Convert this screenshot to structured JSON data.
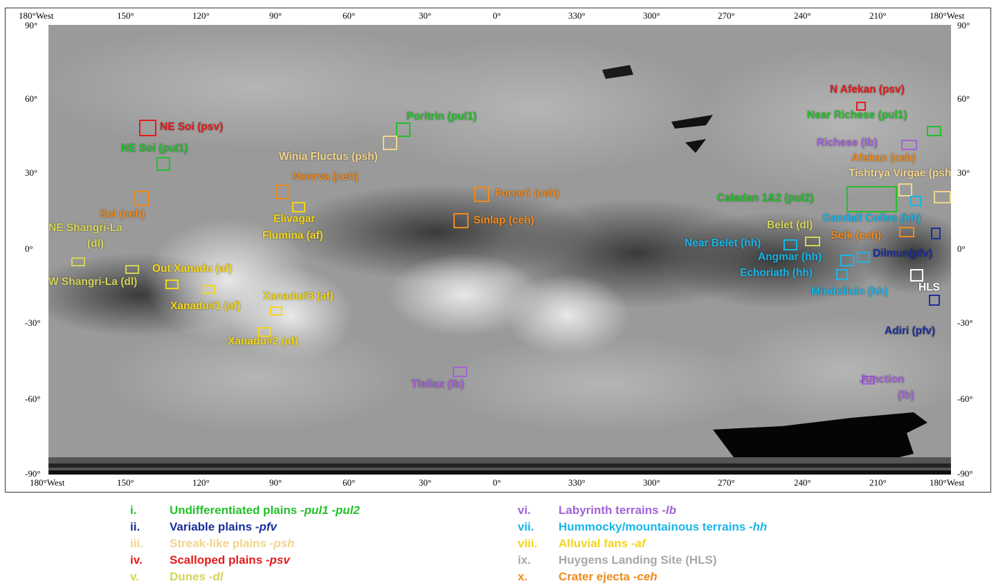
{
  "colors": {
    "green": "#22c02a",
    "navy": "#1a2f9a",
    "tan": "#f2d58c",
    "red": "#e41b1b",
    "khaki": "#d4d45a",
    "purple": "#a262d6",
    "cyan": "#18b6e8",
    "yellow": "#f4d619",
    "gray": "#a8a8a8",
    "orange": "#f08a1c",
    "white": "#ffffff"
  },
  "axes": {
    "top_left_corner": "180°West",
    "top_right_corner": "180°West",
    "bottom_left_corner": "180°West",
    "bottom_right_corner": "180°West",
    "lon_ticks": [
      "150°",
      "120°",
      "90°",
      "60°",
      "30°",
      "0°",
      "330°",
      "300°",
      "270°",
      "240°",
      "210°"
    ],
    "lat_ticks": [
      "90°",
      "60°",
      "30°",
      "0°",
      "-30°",
      "-60°",
      "-90°"
    ]
  },
  "map_labels": [
    {
      "text": "N Afekan (psv)",
      "color": "red"
    },
    {
      "text": "NE Soi (psv)",
      "color": "red"
    },
    {
      "text": "Poritrin (pul1)",
      "color": "green"
    },
    {
      "text": "Near Richese (pul1)",
      "color": "green"
    },
    {
      "text": "NE Soi (pul1)",
      "color": "green"
    },
    {
      "text": "Richese (lb)",
      "color": "purple"
    },
    {
      "text": "Winia Fluctus (psh)",
      "color": "tan"
    },
    {
      "text": "Afekan (ceh)",
      "color": "orange"
    },
    {
      "text": "Menrva (ceh)",
      "color": "orange"
    },
    {
      "text": "Tishtrya Virgae (psh)",
      "color": "tan"
    },
    {
      "text": "Forseti (ceh)",
      "color": "orange"
    },
    {
      "text": "Caladan 1&2 (pul2)",
      "color": "green"
    },
    {
      "text": "Soi (ceh)",
      "color": "orange"
    },
    {
      "text": "Gandalf Colles (hh)",
      "color": "cyan"
    },
    {
      "text": "Elivagar",
      "color": "yellow"
    },
    {
      "text": "Sinlap (ceh)",
      "color": "orange"
    },
    {
      "text": "NE Shangri-La",
      "color": "khaki"
    },
    {
      "text": "Belet (dl)",
      "color": "khaki"
    },
    {
      "text": "Flumina (af)",
      "color": "yellow"
    },
    {
      "text": "Selk (ceh)",
      "color": "orange"
    },
    {
      "text": "(dl)",
      "color": "khaki"
    },
    {
      "text": "Near Belet (hh)",
      "color": "cyan"
    },
    {
      "text": "Dilmun(pfv)",
      "color": "navy"
    },
    {
      "text": "Out Xanadu (af)",
      "color": "yellow"
    },
    {
      "text": "Angmar (hh)",
      "color": "cyan"
    },
    {
      "text": "Echoriath (hh)",
      "color": "cyan"
    },
    {
      "text": "W Shangri-La (dl)",
      "color": "khaki"
    },
    {
      "text": "HLS",
      "color": "white"
    },
    {
      "text": "Mindolluin (hh)",
      "color": "cyan"
    },
    {
      "text": "Xanadu#3 (af)",
      "color": "yellow"
    },
    {
      "text": "Xanadu#1 (af)",
      "color": "yellow"
    },
    {
      "text": "Adiri (pfv)",
      "color": "navy"
    },
    {
      "text": "Xanadu#2 (af)",
      "color": "yellow"
    },
    {
      "text": "Tleilax (lb)",
      "color": "purple"
    },
    {
      "text": "Junction",
      "color": "purple"
    },
    {
      "text": "(lb)",
      "color": "purple"
    }
  ],
  "legend": [
    {
      "num": "i.",
      "label": "Undifferentiated plains ",
      "suffix": "-pul1 -pul2",
      "color": "green"
    },
    {
      "num": "ii.",
      "label": "Variable plains ",
      "suffix": "-pfv",
      "color": "navy"
    },
    {
      "num": "iii.",
      "label": "Streak-like plains ",
      "suffix": "-psh",
      "color": "tan"
    },
    {
      "num": "iv.",
      "label": "Scalloped plains ",
      "suffix": "-psv",
      "color": "red"
    },
    {
      "num": "v.",
      "label": "Dunes ",
      "suffix": "-dl",
      "color": "khaki"
    },
    {
      "num": "vi.",
      "label": "Labyrinth terrains ",
      "suffix": "-lb",
      "color": "purple"
    },
    {
      "num": "vii.",
      "label": "Hummocky/mountainous terrains ",
      "suffix": "-hh",
      "color": "cyan"
    },
    {
      "num": "viii.",
      "label": "Alluvial fans ",
      "suffix": "-af",
      "color": "yellow"
    },
    {
      "num": "ix.",
      "label": "Huygens Landing Site (HLS)",
      "suffix": "",
      "color": "gray"
    },
    {
      "num": "x.",
      "label": "Crater ejecta ",
      "suffix": "-ceh",
      "color": "orange"
    }
  ]
}
